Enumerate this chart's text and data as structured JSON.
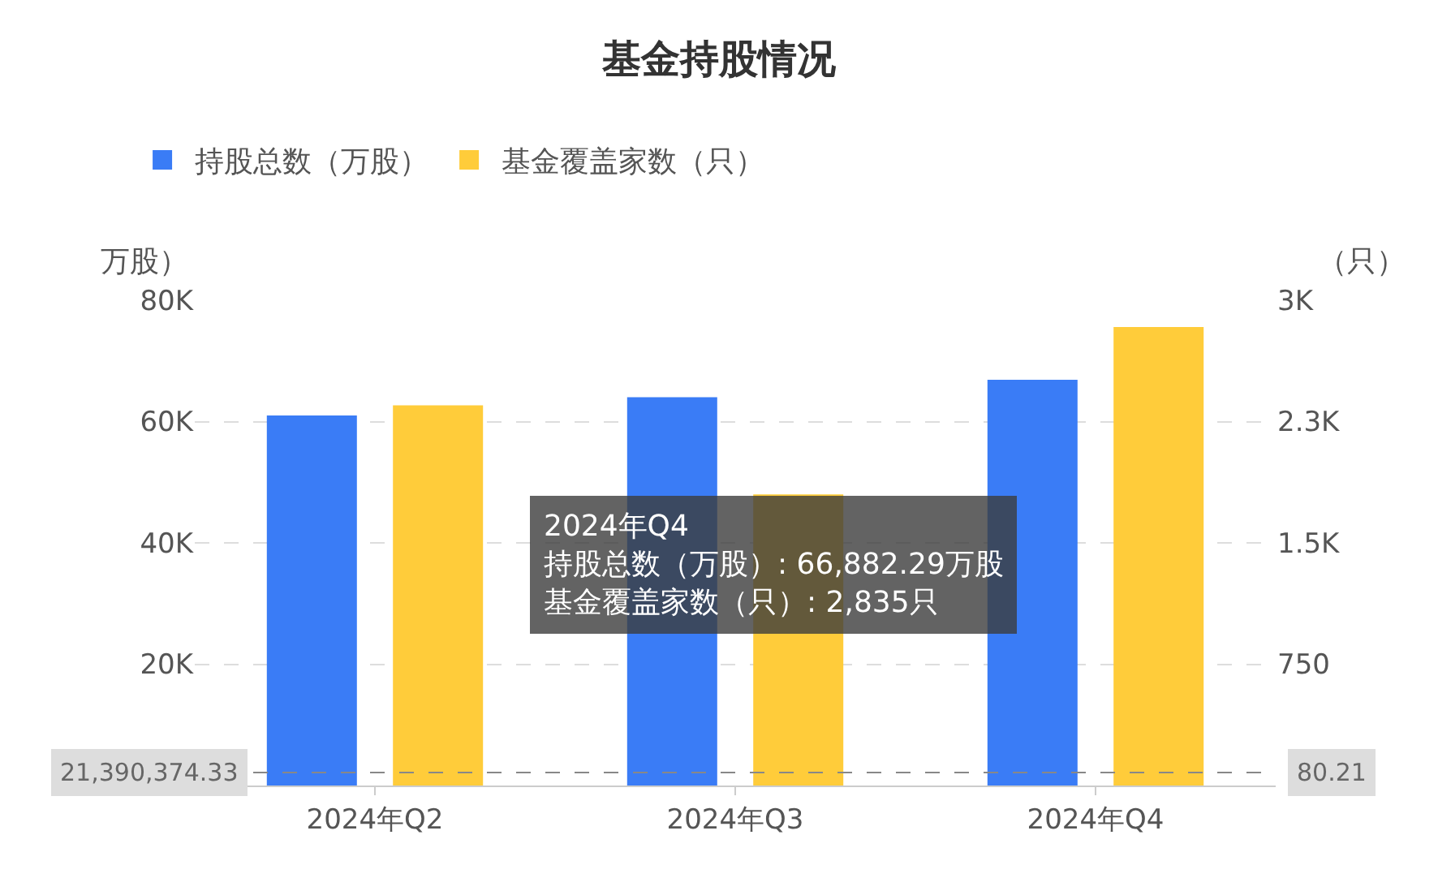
{
  "chart_data": {
    "type": "bar",
    "title": "基金持股情况",
    "categories": [
      "2024年Q2",
      "2024年Q3",
      "2024年Q4"
    ],
    "series": [
      {
        "name": "持股总数（万股）",
        "color": "#3a7cf6",
        "values": [
          61000,
          64000,
          66882.29
        ]
      },
      {
        "name": "基金覆盖家数（只）",
        "color": "#ffcc3a",
        "values": [
          2350,
          1800,
          2835
        ],
        "axis": "y2"
      }
    ],
    "ylabel": "万股）",
    "y2label": "（只）",
    "ylim": [
      0,
      80000
    ],
    "yticks": [
      {
        "value": 20000,
        "label": "20K"
      },
      {
        "value": 40000,
        "label": "40K"
      },
      {
        "value": 60000,
        "label": "60K"
      },
      {
        "value": 80000,
        "label": "80K"
      }
    ],
    "y2lim": [
      0,
      3000
    ],
    "y2ticks": [
      750,
      {
        "value": 1500,
        "label": "1.5K"
      },
      {
        "value": 2250,
        "label": "2.3K"
      },
      {
        "value": 3000,
        "label": "3K"
      }
    ],
    "ref_lines": [
      {
        "axis": "y2",
        "value": 80.21,
        "label": "80.21",
        "color": "#888888",
        "line_style": "dashed"
      }
    ],
    "annotations": [
      "2024年Q4",
      "持股总数（万股）: 66,882.29万股",
      "基金覆盖家数（只）: 2,835只",
      "21,390,374.33"
    ],
    "grid": "y",
    "legend": "top left"
  }
}
